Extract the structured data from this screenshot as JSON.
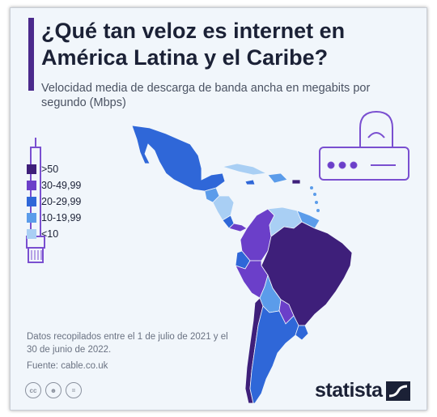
{
  "title": "¿Qué tan veloz es internet en América Latina y el Caribe?",
  "subtitle": "Velocidad media de descarga de banda ancha en megabits por segundo (Mbps)",
  "legend": {
    "items": [
      {
        "label": ">50",
        "color": "#3e1f7a"
      },
      {
        "label": "30-49,99",
        "color": "#6b3fc9"
      },
      {
        "label": "20-29,99",
        "color": "#2f67d8"
      },
      {
        "label": "10-19,99",
        "color": "#5b9cea"
      },
      {
        "label": "<10",
        "color": "#a9cff4"
      }
    ]
  },
  "note": "Datos recopilados entre el 1 de julio de 2021 y el 30 de junio de 2022.",
  "source": "Fuente: cable.co.uk",
  "brand": "statista",
  "cc_icons": [
    "cc-icon",
    "by-icon",
    "nd-icon"
  ],
  "colors": {
    "title_accent": "#4b2a8c",
    "background": "#f1f6fb",
    "router": "#7a4fd0"
  }
}
